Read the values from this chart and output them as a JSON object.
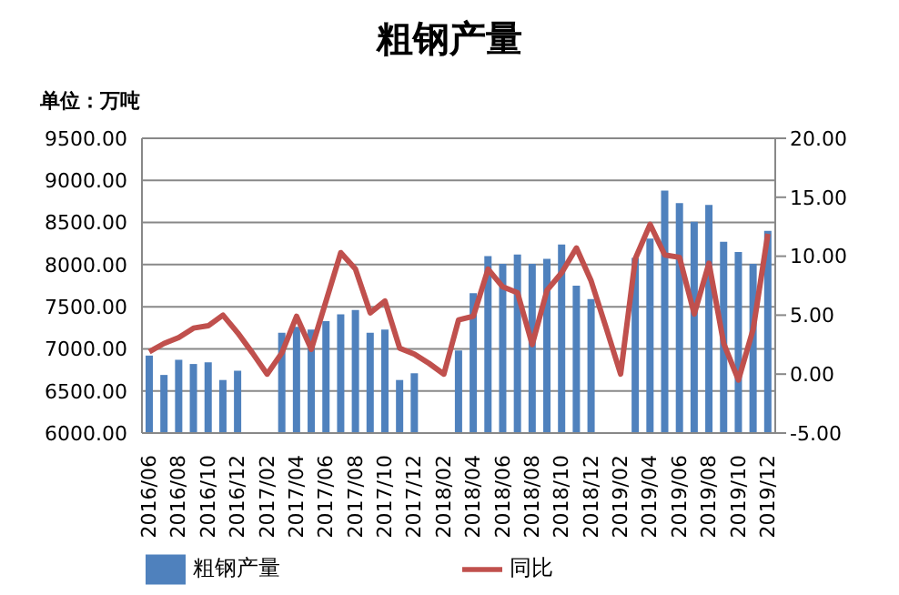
{
  "chart_data": {
    "type": "bar",
    "title": "粗钢产量",
    "annotations": [
      "单位：万吨"
    ],
    "categories": [
      "2016/06",
      null,
      "2016/08",
      null,
      "2016/10",
      null,
      "2016/12",
      null,
      "2017/02",
      null,
      "2017/04",
      null,
      "2017/06",
      null,
      "2017/08",
      null,
      "2017/10",
      null,
      "2017/12",
      null,
      "2018/02",
      null,
      "2018/04",
      null,
      "2018/06",
      null,
      "2018/08",
      null,
      "2018/10",
      null,
      "2018/12",
      null,
      "2019/02",
      null,
      "2019/04",
      null,
      "2019/06",
      null,
      "2019/08",
      null,
      "2019/10",
      null,
      "2019/12"
    ],
    "series": [
      {
        "name": "粗钢产量",
        "color": "#4f81bd",
        "values": [
          6920,
          6690,
          6870,
          6820,
          6840,
          6630,
          6740,
          null,
          null,
          7190,
          7260,
          7230,
          7330,
          7410,
          7460,
          7190,
          7230,
          6630,
          6710,
          null,
          null,
          6980,
          7660,
          8100,
          8010,
          8120,
          8010,
          8070,
          8240,
          7750,
          7590,
          null,
          null,
          8080,
          8310,
          8880,
          8730,
          8510,
          8710,
          8270,
          8150,
          8010,
          8400
        ]
      },
      {
        "name": "同比",
        "type": "line",
        "axis": "y2",
        "color": "#c0504d",
        "values": [
          1.9,
          2.6,
          3.1,
          3.9,
          4.1,
          5.0,
          3.5,
          1.8,
          0.0,
          1.8,
          4.9,
          2.1,
          6.2,
          10.3,
          8.9,
          5.2,
          6.2,
          2.2,
          1.7,
          0.9,
          0.0,
          4.6,
          4.9,
          8.9,
          7.4,
          6.9,
          2.5,
          7.1,
          8.6,
          10.7,
          7.9,
          4.0,
          0.0,
          9.8,
          12.7,
          10.1,
          9.9,
          5.1,
          9.4,
          2.6,
          -0.5,
          3.8,
          11.9
        ]
      }
    ],
    "ylim": [
      6000,
      9500
    ],
    "yticks": [
      {
        "value": 6000,
        "label": "6000.00"
      },
      {
        "value": 6500,
        "label": "6500.00"
      },
      {
        "value": 7000,
        "label": "7000.00"
      },
      {
        "value": 7500,
        "label": "7500.00"
      },
      {
        "value": 8000,
        "label": "8000.00"
      },
      {
        "value": 8500,
        "label": "8500.00"
      },
      {
        "value": 9000,
        "label": "9000.00"
      },
      {
        "value": 9500,
        "label": "9500.00"
      }
    ],
    "y2lim": [
      -5,
      20
    ],
    "y2ticks": [
      {
        "value": -5,
        "label": "-5.00"
      },
      {
        "value": 0,
        "label": "0.00"
      },
      {
        "value": 5,
        "label": "5.00"
      },
      {
        "value": 10,
        "label": "10.00"
      },
      {
        "value": 15,
        "label": "15.00"
      },
      {
        "value": 20,
        "label": "20.00"
      }
    ],
    "grid": "y",
    "legend": "bottom",
    "marker": "none"
  }
}
